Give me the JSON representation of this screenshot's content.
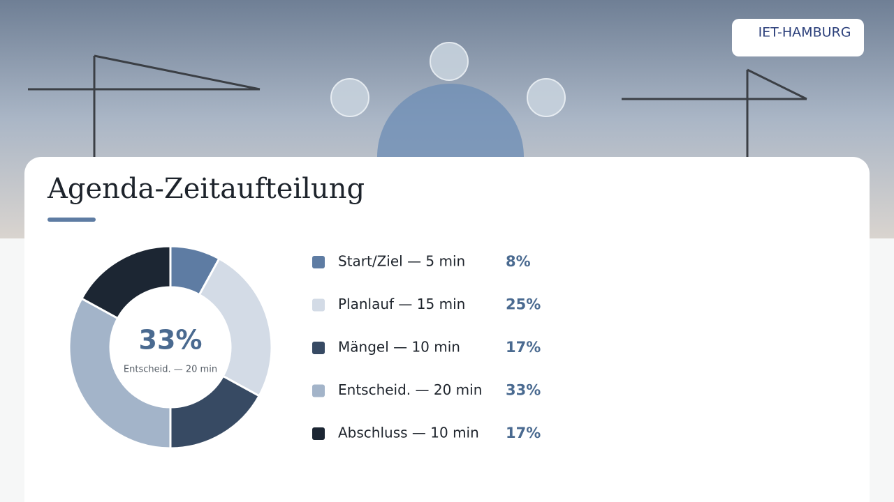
{
  "logo": "IET-HAMBURG",
  "chart_data": {
    "type": "pie",
    "title": "Agenda-Zeitaufteilung",
    "categories": [
      "Start/Ziel — 5 min",
      "Planlauf — 15 min",
      "Mängel — 10 min",
      "Entscheid. — 20 min",
      "Abschluss — 10 min"
    ],
    "values": [
      8,
      25,
      17,
      33,
      17
    ],
    "value_labels": [
      "8%",
      "25%",
      "17%",
      "33%",
      "17%"
    ],
    "colors": [
      "#5e7ca3",
      "#d3dbe6",
      "#374a63",
      "#a3b4c9",
      "#1c2633"
    ],
    "highlight": 3
  }
}
